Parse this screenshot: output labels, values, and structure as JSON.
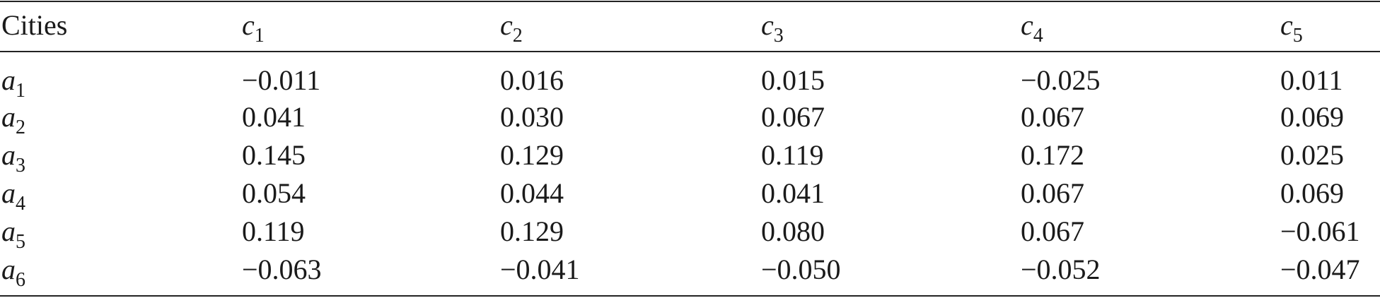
{
  "table": {
    "header": [
      {
        "base": "Cities"
      },
      {
        "base": "c",
        "sub": "1"
      },
      {
        "base": "c",
        "sub": "2"
      },
      {
        "base": "c",
        "sub": "3"
      },
      {
        "base": "c",
        "sub": "4"
      },
      {
        "base": "c",
        "sub": "5"
      }
    ],
    "rows": [
      [
        {
          "base": "a",
          "sub": "1"
        },
        "−0.011",
        "0.016",
        "0.015",
        "−0.025",
        "0.011"
      ],
      [
        {
          "base": "a",
          "sub": "2"
        },
        "0.041",
        "0.030",
        "0.067",
        "0.067",
        "0.069"
      ],
      [
        {
          "base": "a",
          "sub": "3"
        },
        "0.145",
        "0.129",
        "0.119",
        "0.172",
        "0.025"
      ],
      [
        {
          "base": "a",
          "sub": "4"
        },
        "0.054",
        "0.044",
        "0.041",
        "0.067",
        "0.069"
      ],
      [
        {
          "base": "a",
          "sub": "5"
        },
        "0.119",
        "0.129",
        "0.080",
        "0.067",
        "−0.061"
      ],
      [
        {
          "base": "a",
          "sub": "6"
        },
        "−0.063",
        "−0.041",
        "−0.050",
        "−0.052",
        "−0.047"
      ]
    ]
  }
}
